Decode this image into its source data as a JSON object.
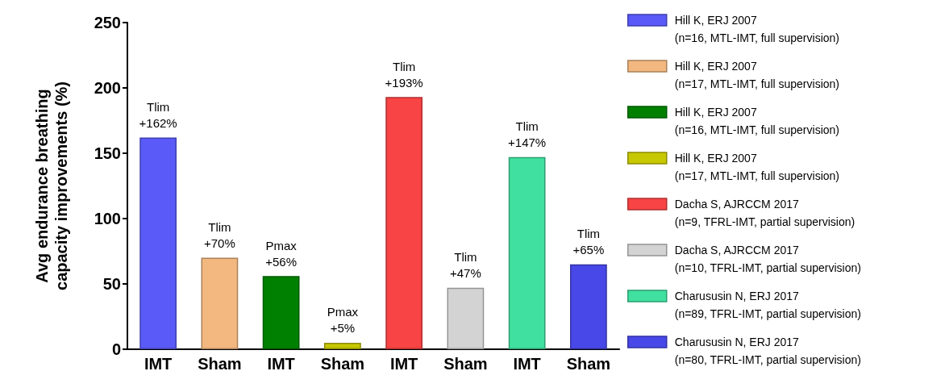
{
  "chart_data": {
    "type": "bar",
    "ylabel": "Avg endurance breathing\ncapacity improvements (%)",
    "categories": [
      "IMT",
      "Sham",
      "IMT",
      "Sham",
      "IMT",
      "Sham",
      "IMT",
      "Sham"
    ],
    "series": [
      {
        "name": "Hill K, ERJ 2007\n(n=16, MTL-IMT, full supervision)",
        "color": "#5a5af8",
        "values": [
          162,
          null,
          null,
          null,
          null,
          null,
          null,
          null
        ],
        "value_labels": [
          "Tlim\n+162%",
          null,
          null,
          null,
          null,
          null,
          null,
          null
        ]
      },
      {
        "name": "Hill K, ERJ 2007\n(n=17, MTL-IMT, full supervision)",
        "color": "#f2b880",
        "values": [
          null,
          70,
          null,
          null,
          null,
          null,
          null,
          null
        ],
        "value_labels": [
          null,
          "Tlim\n+70%",
          null,
          null,
          null,
          null,
          null,
          null
        ]
      },
      {
        "name": "Hill K, ERJ 2007\n(n=16, MTL-IMT, full supervision)",
        "color": "#008000",
        "values": [
          null,
          null,
          56,
          null,
          null,
          null,
          null,
          null
        ],
        "value_labels": [
          null,
          null,
          "Pmax\n+56%",
          null,
          null,
          null,
          null,
          null
        ]
      },
      {
        "name": "Hill K, ERJ 2007\n(n=17, MTL-IMT, full supervision)",
        "color": "#c8c800",
        "values": [
          null,
          null,
          null,
          5,
          null,
          null,
          null,
          null
        ],
        "value_labels": [
          null,
          null,
          null,
          "Pmax\n+5%",
          null,
          null,
          null,
          null
        ]
      },
      {
        "name": "Dacha S, AJRCCM 2017\n(n=9, TFRL-IMT, partial supervision)",
        "color": "#f84444",
        "values": [
          null,
          null,
          null,
          null,
          193,
          null,
          null,
          null
        ],
        "value_labels": [
          null,
          null,
          null,
          null,
          "Tlim\n+193%",
          null,
          null,
          null
        ]
      },
      {
        "name": "Dacha S, AJRCCM 2017\n(n=10, TFRL-IMT, partial supervision)",
        "color": "#d3d3d3",
        "values": [
          null,
          null,
          null,
          null,
          null,
          47,
          null,
          null
        ],
        "value_labels": [
          null,
          null,
          null,
          null,
          null,
          "Tlim\n+47%",
          null,
          null
        ]
      },
      {
        "name": "Charususin N, ERJ 2017\n(n=89, TFRL-IMT, partial supervision)",
        "color": "#40e0a0",
        "values": [
          null,
          null,
          null,
          null,
          null,
          null,
          147,
          null
        ],
        "value_labels": [
          null,
          null,
          null,
          null,
          null,
          null,
          "Tlim\n+147%",
          null
        ]
      },
      {
        "name": "Charususin N, ERJ 2017\n(n=80, TFRL-IMT, partial supervision)",
        "color": "#4848e8",
        "values": [
          null,
          null,
          null,
          null,
          null,
          null,
          null,
          65
        ],
        "value_labels": [
          null,
          null,
          null,
          null,
          null,
          null,
          null,
          "Tlim\n+65%"
        ]
      }
    ],
    "ylim": [
      0,
      250
    ],
    "yticks": [
      0,
      50,
      100,
      150,
      200,
      250
    ],
    "grid": false,
    "legend": "right"
  }
}
